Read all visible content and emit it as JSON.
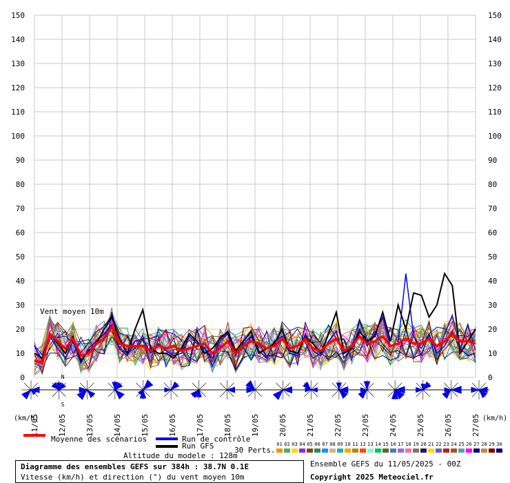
{
  "chart_data": {
    "type": "line",
    "y_ticks": [
      0,
      10,
      20,
      30,
      40,
      50,
      60,
      70,
      80,
      90,
      100,
      110,
      120,
      130,
      140,
      150
    ],
    "ylim": [
      0,
      150
    ],
    "x_ticks": [
      "11/05",
      "12/05",
      "13/05",
      "14/05",
      "15/05",
      "16/05",
      "17/05",
      "18/05",
      "19/05",
      "20/05",
      "21/05",
      "22/05",
      "23/05",
      "24/05",
      "25/05",
      "26/05",
      "27/05"
    ],
    "unit_left": "(km/h)",
    "unit_right": "(km/h)",
    "annotation": "Vent moyen 10m",
    "grid": true,
    "series": [
      {
        "name": "Moyenne des scénarios",
        "color": "#ff0000",
        "values": [
          7,
          6,
          18,
          15,
          12,
          16,
          9,
          10,
          14,
          16,
          21,
          14,
          13,
          13,
          13,
          11,
          13,
          12,
          13,
          11,
          12,
          13,
          14,
          10,
          12,
          15,
          10,
          13,
          15,
          14,
          12,
          13,
          16,
          12,
          13,
          16,
          12,
          11,
          14,
          16,
          11,
          13,
          17,
          14,
          15,
          17,
          13,
          14,
          16,
          14,
          14,
          16,
          13,
          15,
          18,
          15,
          15,
          14
        ]
      },
      {
        "name": "Run de contrôle",
        "color": "#0000ff",
        "values": [
          13,
          7,
          17,
          12,
          8,
          15,
          6,
          12,
          15,
          18,
          22,
          12,
          9,
          15,
          16,
          10,
          14,
          11,
          9,
          10,
          17,
          14,
          12,
          8,
          15,
          18,
          9,
          14,
          17,
          11,
          8,
          15,
          17,
          10,
          9,
          18,
          11,
          9,
          15,
          19,
          8,
          12,
          20,
          13,
          18,
          25,
          13,
          14,
          43,
          17,
          12,
          18,
          10,
          13,
          19,
          12,
          9,
          10
        ]
      },
      {
        "name": "Run GFS",
        "color": "#000000",
        "values": [
          10,
          8,
          18,
          14,
          10,
          17,
          7,
          11,
          14,
          20,
          25,
          16,
          10,
          20,
          28,
          12,
          10,
          10,
          8,
          12,
          18,
          15,
          10,
          12,
          16,
          19,
          11,
          15,
          19,
          10,
          12,
          14,
          20,
          11,
          10,
          17,
          14,
          10,
          18,
          27,
          10,
          12,
          19,
          15,
          17,
          27,
          15,
          30,
          20,
          35,
          34,
          25,
          30,
          43,
          38,
          10,
          15,
          20
        ]
      }
    ],
    "direction_markers": 17
  },
  "legend": {
    "mean_label": "Moyenne des scénarios",
    "control_label": "Run de contrôle",
    "gfs_label": "Run GFS",
    "perts_label": "30 Perts.",
    "pert_numbers": [
      "01",
      "02",
      "03",
      "04",
      "05",
      "06",
      "07",
      "08",
      "09",
      "10",
      "11",
      "12",
      "13",
      "14",
      "15",
      "16",
      "17",
      "18",
      "19",
      "20",
      "21",
      "22",
      "23",
      "24",
      "25",
      "26",
      "27",
      "28",
      "29",
      "30"
    ],
    "pert_colors": [
      "#ff8c00",
      "#4caf50",
      "#ffd700",
      "#8a2be2",
      "#8b4513",
      "#2e8b57",
      "#1e90ff",
      "#d2b48c",
      "#20b2aa",
      "#ffa500",
      "#b8860b",
      "#ff4500",
      "#7fffd4",
      "#00c957",
      "#556b2f",
      "#4682b4",
      "#9370db",
      "#ff69b4",
      "#8b7355",
      "#191970",
      "#ffd700",
      "#6a5acd",
      "#b22222",
      "#a0522d",
      "#5f9ea0",
      "#ff00ff",
      "#00008b",
      "#cd853f",
      "#800000",
      "#000080"
    ]
  },
  "footer": {
    "altitude": "Altitude du modele : 128m",
    "ensemble": "Ensemble GEFS du 11/05/2025 - 00Z",
    "title": "Diagramme des ensembles GEFS sur 384h : 38.7N 0.1E",
    "subtitle": "Vitesse (km/h) et direction (°) du vent moyen 10m",
    "copyright": "Copyright 2025 Meteociel.fr"
  },
  "compass": {
    "north": "N",
    "south": "S"
  }
}
